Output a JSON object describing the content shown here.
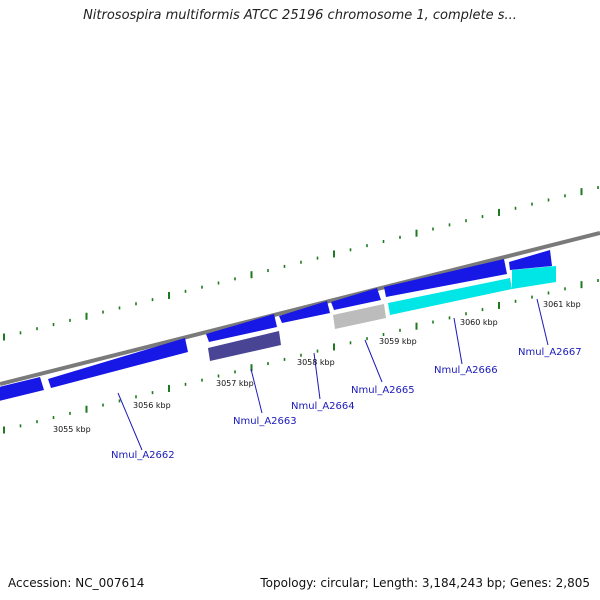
{
  "title": "Nitrosospira multiformis ATCC 25196 chromosome 1, complete s...",
  "footer": {
    "accession": "Accession: NC_007614",
    "topology": "Topology: circular; Length: 3,184,243 bp; Genes: 2,805"
  },
  "colors": {
    "backbone": "#7a7a7a",
    "tick": "#1e7a1e",
    "gene_blue": "#1717e6",
    "gene_cyan": "#00e5e5",
    "gene_grey": "#bcbcbc",
    "gene_navy": "#4a4494",
    "label_link": "#1a1ab8",
    "label_text": "#111111"
  },
  "kbp_labels": [
    "3055 kbp",
    "3056 kbp",
    "3057 kbp",
    "3058 kbp",
    "3059 kbp",
    "3060 kbp",
    "3061 kbp"
  ],
  "gene_labels": [
    "Nmul_A2662",
    "Nmul_A2663",
    "Nmul_A2664",
    "Nmul_A2665",
    "Nmul_A2666",
    "Nmul_A2667"
  ]
}
